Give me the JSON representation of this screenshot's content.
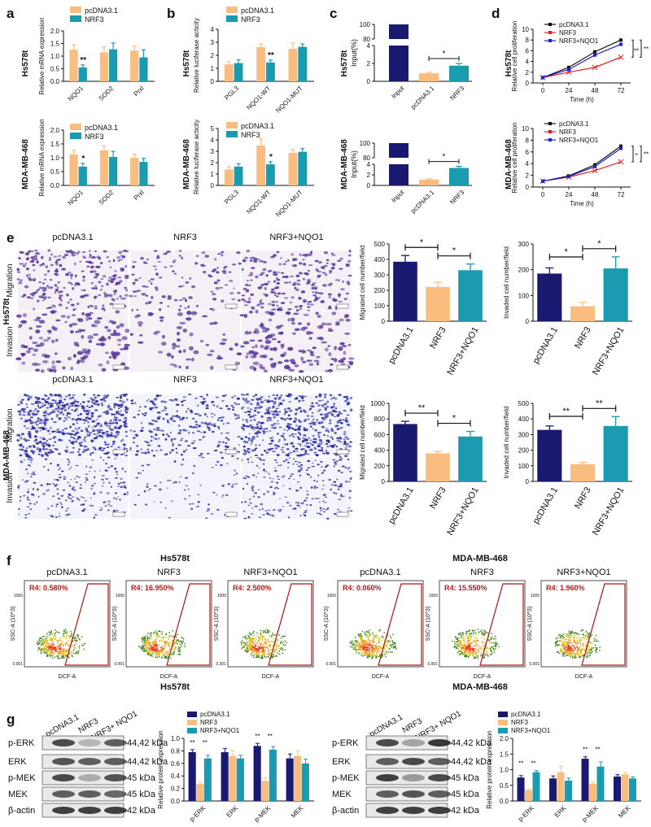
{
  "colors": {
    "pc": "#f9bd80",
    "nrf3": "#1a9bb0",
    "nqo1": "#1a9bb0",
    "navy": "#191970",
    "red": "#e02020",
    "blue": "#1f1fd0"
  },
  "panel_letters": [
    "a",
    "b",
    "c",
    "d",
    "e",
    "f",
    "g"
  ],
  "row_labels": {
    "hs": "Hs578t",
    "mda": "MDA-MB-468"
  },
  "legend": {
    "pc": "pcDNA3.1",
    "nrf3": "NRF3",
    "nqo1": "NRF3+NQO1"
  },
  "panel_e": {
    "col_titles": [
      "pcDNA3.1",
      "NRF3",
      "NRF3+NQO1"
    ],
    "row_titles": [
      "Migration",
      "Invasion"
    ]
  },
  "panel_f": {
    "group_titles": [
      "Hs578t",
      "MDA-MB-468"
    ],
    "col_titles": [
      "pcDNA3.1",
      "NRF3",
      "NRF3+NQO1",
      "pcDNA3.1",
      "NRF3",
      "NRF3+NQO1"
    ],
    "gates": [
      "R4: 0.580%",
      "R4: 16.950%",
      "R4: 2.500%",
      "R4: 0.060%",
      "R4: 15.550%",
      "R4: 1.960%"
    ],
    "ylabel": "SSC-A (10^3)",
    "xlabel": "DCF-A",
    "yticks": [
      "1000",
      "0.001"
    ]
  },
  "panel_g": {
    "group_titles": [
      "Hs578t",
      "MDA-MB-468"
    ],
    "lane_labels": [
      "pcDNA3.1",
      "NRF3",
      "NRF3+ NQO1"
    ],
    "proteins": [
      "p-ERK",
      "ERK",
      "p-MEK",
      "MEK",
      "β-actin"
    ],
    "sizes": [
      "44,42 kDa",
      "44,42 kDa",
      "45 kDa",
      "45 kDa",
      "42 kDa"
    ]
  },
  "chart_data": [
    {
      "id": "a_hs",
      "type": "bar",
      "categories": [
        "NQO1",
        "SOD2",
        "Prxl"
      ],
      "series": [
        {
          "name": "pcDNA3.1",
          "values": [
            1.25,
            1.15,
            1.22
          ],
          "err": [
            0.2,
            0.22,
            0.18
          ]
        },
        {
          "name": "NRF3",
          "values": [
            0.55,
            1.27,
            0.95
          ],
          "err": [
            0.1,
            0.25,
            0.3
          ]
        }
      ],
      "ylabel": "Relative mRNA expression",
      "ylim": [
        0,
        2.0
      ],
      "yticks": [
        "0.0",
        "0.5",
        "1.0",
        "1.5",
        "2.0"
      ],
      "sig": [
        {
          "cat": 0,
          "text": "**"
        }
      ]
    },
    {
      "id": "a_mda",
      "type": "bar",
      "categories": [
        "NQO1",
        "SOD2",
        "Prxl"
      ],
      "series": [
        {
          "name": "pcDNA3.1",
          "values": [
            1.12,
            1.27,
            1.0
          ],
          "err": [
            0.15,
            0.17,
            0.13
          ]
        },
        {
          "name": "NRF3",
          "values": [
            0.68,
            1.03,
            0.85
          ],
          "err": [
            0.12,
            0.2,
            0.13
          ]
        }
      ],
      "ylabel": "Relative mRNA expression",
      "ylim": [
        0,
        2.0
      ],
      "yticks": [
        "0.0",
        "0.5",
        "1.0",
        "1.5",
        "2.0"
      ],
      "sig": [
        {
          "cat": 0,
          "text": "*"
        }
      ]
    },
    {
      "id": "b_hs",
      "type": "bar",
      "categories": [
        "PGL3",
        "NQO1-WT",
        "NQO1-MUT"
      ],
      "series": [
        {
          "name": "pcDNA3.1",
          "values": [
            1.3,
            2.62,
            2.5
          ],
          "err": [
            0.2,
            0.25,
            0.45
          ]
        },
        {
          "name": "NRF3",
          "values": [
            1.4,
            1.45,
            2.65
          ],
          "err": [
            0.25,
            0.18,
            0.22
          ]
        }
      ],
      "ylabel": "Relative luciferase acticity",
      "ylim": [
        0,
        4
      ],
      "yticks": [
        "0",
        "1",
        "2",
        "3",
        "4"
      ],
      "sig": [
        {
          "cat": 1,
          "text": "**"
        }
      ]
    },
    {
      "id": "b_mda",
      "type": "bar",
      "categories": [
        "PGL3",
        "NQO1-WT",
        "NQO1-MUT"
      ],
      "series": [
        {
          "name": "pcDNA3.1",
          "values": [
            1.4,
            3.5,
            2.85
          ],
          "err": [
            0.25,
            0.6,
            0.3
          ]
        },
        {
          "name": "NRF3",
          "values": [
            1.65,
            1.85,
            2.95
          ],
          "err": [
            0.25,
            0.22,
            0.28
          ]
        }
      ],
      "ylabel": "Relative luciferase acticity",
      "ylim": [
        0,
        5
      ],
      "yticks": [
        "0",
        "1",
        "2",
        "3",
        "4",
        "5"
      ],
      "sig": [
        {
          "cat": 1,
          "text": "*"
        }
      ]
    },
    {
      "id": "c_hs",
      "type": "bar",
      "categories": [
        "Input",
        "pcDNA3.1",
        "NRF3"
      ],
      "values": [
        100,
        0.9,
        1.75
      ],
      "err": [
        0,
        0.1,
        0.25
      ],
      "ylabel": "Input(%)",
      "yticks": [
        "0",
        "2",
        "4",
        "80",
        "100"
      ],
      "axis_break": [
        5,
        80
      ],
      "sig_bracket": {
        "from": 1,
        "to": 2,
        "text": "*"
      }
    },
    {
      "id": "c_mda",
      "type": "bar",
      "categories": [
        "Input",
        "pcDNA3.1",
        "NRF3"
      ],
      "values": [
        100,
        1.1,
        3.3
      ],
      "err": [
        0,
        0.15,
        0.3
      ],
      "ylabel": "Input(%)",
      "yticks": [
        "0",
        "2",
        "4",
        "80",
        "100"
      ],
      "axis_break": [
        5,
        80
      ],
      "sig_bracket": {
        "from": 1,
        "to": 2,
        "text": "*"
      }
    },
    {
      "id": "d_hs",
      "type": "line",
      "x": [
        0,
        24,
        48,
        72
      ],
      "xlabel": "Time (h)",
      "ylabel": "Relative cell proliferation",
      "ylim": [
        0,
        10
      ],
      "yticks": [
        "0",
        "2",
        "4",
        "6",
        "8",
        "10"
      ],
      "series": [
        {
          "name": "pcDNA3.1",
          "values": [
            1.0,
            2.9,
            5.8,
            8.0
          ]
        },
        {
          "name": "NRF3",
          "values": [
            1.0,
            2.0,
            2.9,
            4.8
          ]
        },
        {
          "name": "NRF3+NQO1",
          "values": [
            1.0,
            2.5,
            5.2,
            7.2
          ]
        }
      ],
      "sig": [
        "**",
        "**"
      ]
    },
    {
      "id": "d_mda",
      "type": "line",
      "x": [
        0,
        24,
        48,
        72
      ],
      "xlabel": "Time (h)",
      "ylabel": "Relative cell proliferation",
      "ylim": [
        0,
        10
      ],
      "yticks": [
        "0",
        "2",
        "4",
        "6",
        "8",
        "10"
      ],
      "series": [
        {
          "name": "pcDNA3.1",
          "values": [
            1.0,
            1.9,
            3.8,
            7.0
          ]
        },
        {
          "name": "NRF3",
          "values": [
            1.0,
            1.7,
            2.8,
            4.3
          ]
        },
        {
          "name": "NRF3+NQO1",
          "values": [
            1.0,
            1.8,
            3.5,
            6.6
          ]
        }
      ],
      "sig": [
        "*",
        "**"
      ]
    },
    {
      "id": "e_hs_mig",
      "type": "bar",
      "categories": [
        "pcDNA3.1",
        "NRF3",
        "NRF3+NQO1"
      ],
      "values": [
        385,
        222,
        330
      ],
      "err": [
        40,
        30,
        40
      ],
      "ylabel": "Migrated cell number/field",
      "ylim": [
        0,
        500
      ],
      "yticks": [
        "0",
        "100",
        "200",
        "300",
        "400",
        "500"
      ],
      "brackets": [
        {
          "from": 0,
          "to": 1,
          "text": "*"
        },
        {
          "from": 1,
          "to": 2,
          "text": "*"
        }
      ]
    },
    {
      "id": "e_hs_inv",
      "type": "bar",
      "categories": [
        "pcDNA3.1",
        "NRF3",
        "NRF3+NQO1"
      ],
      "values": [
        185,
        58,
        205
      ],
      "err": [
        22,
        15,
        45
      ],
      "ylabel": "Invaded cell number/field",
      "ylim": [
        0,
        300
      ],
      "yticks": [
        "0",
        "100",
        "200",
        "300"
      ],
      "brackets": [
        {
          "from": 0,
          "to": 1,
          "text": "*"
        },
        {
          "from": 1,
          "to": 2,
          "text": "*"
        }
      ]
    },
    {
      "id": "e_mda_mig",
      "type": "bar",
      "categories": [
        "pcDNA3.1",
        "NRF3",
        "NRF3+NQO1"
      ],
      "values": [
        735,
        360,
        575
      ],
      "err": [
        35,
        25,
        65
      ],
      "ylabel": "Migrated cell number/field",
      "ylim": [
        0,
        1000
      ],
      "yticks": [
        "0",
        "200",
        "400",
        "600",
        "800",
        "1000"
      ],
      "brackets": [
        {
          "from": 0,
          "to": 1,
          "text": "**"
        },
        {
          "from": 1,
          "to": 2,
          "text": "*"
        }
      ]
    },
    {
      "id": "e_mda_inv",
      "type": "bar",
      "categories": [
        "pcDNA3.1",
        "NRF3",
        "NRF3+NQO1"
      ],
      "values": [
        330,
        110,
        355
      ],
      "err": [
        25,
        12,
        60
      ],
      "ylabel": "Invaded cell number/field",
      "ylim": [
        0,
        500
      ],
      "yticks": [
        "0",
        "100",
        "200",
        "300",
        "400",
        "500"
      ],
      "brackets": [
        {
          "from": 0,
          "to": 1,
          "text": "**"
        },
        {
          "from": 1,
          "to": 2,
          "text": "**"
        }
      ]
    },
    {
      "id": "g_hs",
      "type": "bar",
      "categories": [
        "p-ERK",
        "ERK",
        "p-MEK",
        "MEK"
      ],
      "series": [
        {
          "name": "pcDNA3.1",
          "values": [
            0.78,
            0.78,
            0.88,
            0.68
          ],
          "err": [
            0.04,
            0.06,
            0.04,
            0.07
          ]
        },
        {
          "name": "NRF3",
          "values": [
            0.27,
            0.72,
            0.32,
            0.72
          ],
          "err": [
            0.03,
            0.08,
            0.05,
            0.08
          ]
        },
        {
          "name": "NRF3+NQO1",
          "values": [
            0.68,
            0.68,
            0.82,
            0.6
          ],
          "err": [
            0.05,
            0.05,
            0.05,
            0.07
          ]
        }
      ],
      "ylabel": "Relative  protein expression",
      "ylim": [
        0,
        1.0
      ],
      "yticks": [
        "0.0",
        "0.2",
        "0.4",
        "0.6",
        "0.8",
        "1.0"
      ],
      "sig_label": "**"
    },
    {
      "id": "g_mda",
      "type": "bar",
      "categories": [
        "p-ERK",
        "ERK",
        "p-MEK",
        "MEK"
      ],
      "series": [
        {
          "name": "pcDNA3.1",
          "values": [
            0.75,
            0.72,
            1.35,
            0.78
          ],
          "err": [
            0.06,
            0.08,
            0.06,
            0.06
          ]
        },
        {
          "name": "NRF3",
          "values": [
            0.35,
            0.92,
            0.55,
            0.85
          ],
          "err": [
            0.03,
            0.2,
            0.05,
            0.06
          ]
        },
        {
          "name": "NRF3+NQO1",
          "values": [
            0.92,
            0.65,
            1.1,
            0.72
          ],
          "err": [
            0.05,
            0.08,
            0.15,
            0.05
          ]
        }
      ],
      "ylabel": "Relative  protein expression",
      "ylim": [
        0,
        2.0
      ],
      "yticks": [
        "0.0",
        "0.5",
        "1.0",
        "1.5",
        "2.0"
      ],
      "sig_label": "**"
    }
  ]
}
